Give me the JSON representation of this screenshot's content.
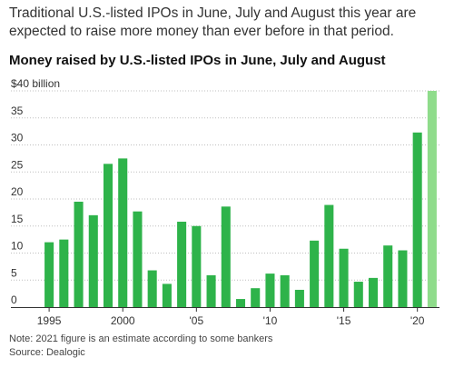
{
  "header": {
    "subtitle": "Traditional U.S.-listed IPOs in June, July and August this year are expected to raise more money than ever before in that period.",
    "title": "Money raised by U.S.-listed IPOs in June, July and August"
  },
  "footer": {
    "note": "Note: 2021 figure is an estimate according to some bankers",
    "source": "Source: Dealogic"
  },
  "colors": {
    "bar": "#2eb34a",
    "estimate_bar": "#8fdc8b",
    "grid": "#bfbfbf",
    "axis": "#333333"
  },
  "chart_data": {
    "type": "bar",
    "title": "Money raised by U.S.-listed IPOs in June, July and August",
    "xlabel": "",
    "ylabel": "",
    "ylim": [
      0,
      40
    ],
    "yticks": [
      0,
      5,
      10,
      15,
      20,
      25,
      30,
      35,
      40
    ],
    "ytick_labels": [
      "0",
      "5",
      "10",
      "15",
      "20",
      "25",
      "30",
      "35",
      "$40 billion"
    ],
    "grid": true,
    "categories": [
      1995,
      1996,
      1997,
      1998,
      1999,
      2000,
      2001,
      2002,
      2003,
      2004,
      2005,
      2006,
      2007,
      2008,
      2009,
      2010,
      2011,
      2012,
      2013,
      2014,
      2015,
      2016,
      2017,
      2018,
      2019,
      2020,
      2021
    ],
    "xtick_labels": [
      {
        "year": 1995,
        "label": "1995"
      },
      {
        "year": 2000,
        "label": "2000"
      },
      {
        "year": 2005,
        "label": "'05"
      },
      {
        "year": 2010,
        "label": "'10"
      },
      {
        "year": 2015,
        "label": "'15"
      },
      {
        "year": 2020,
        "label": "'20"
      }
    ],
    "values": [
      12,
      12.5,
      19.5,
      17,
      26.5,
      27.5,
      17.7,
      6.8,
      4.3,
      15.8,
      15,
      5.9,
      18.6,
      1.5,
      3.5,
      6.2,
      5.9,
      3.2,
      12.3,
      18.9,
      10.8,
      4.7,
      5.4,
      11.4,
      10.5,
      32.3,
      40
    ],
    "estimate_categories": [
      2021
    ]
  }
}
